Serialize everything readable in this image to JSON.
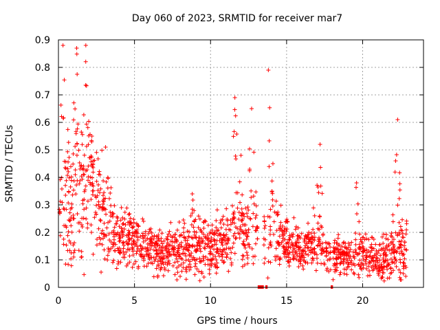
{
  "chart_data": {
    "type": "scatter",
    "title": "Day 060 of 2023, SRMTID for receiver mar7",
    "xlabel": "GPS time / hours",
    "ylabel": "SRMTID / TECUs",
    "xlim": [
      0,
      24
    ],
    "ylim": [
      0,
      0.9
    ],
    "xticks": [
      0,
      5,
      10,
      15,
      20
    ],
    "yticks": [
      0,
      0.1,
      0.2,
      0.3,
      0.4,
      0.5,
      0.6,
      0.7,
      0.8,
      0.9
    ],
    "grid": true,
    "marker": "+",
    "color": "#ff0000",
    "series_name": "SRMTID",
    "envelope": [
      {
        "t": 0.0,
        "base": 0.27,
        "spread": 0.14
      },
      {
        "t": 0.5,
        "base": 0.28,
        "spread": 0.2
      },
      {
        "t": 1.0,
        "base": 0.35,
        "spread": 0.22
      },
      {
        "t": 1.5,
        "base": 0.38,
        "spread": 0.22
      },
      {
        "t": 2.0,
        "base": 0.36,
        "spread": 0.2
      },
      {
        "t": 2.5,
        "base": 0.32,
        "spread": 0.16
      },
      {
        "t": 3.0,
        "base": 0.28,
        "spread": 0.14
      },
      {
        "t": 3.5,
        "base": 0.22,
        "spread": 0.1
      },
      {
        "t": 4.0,
        "base": 0.2,
        "spread": 0.09
      },
      {
        "t": 5.0,
        "base": 0.17,
        "spread": 0.07
      },
      {
        "t": 6.0,
        "base": 0.14,
        "spread": 0.06
      },
      {
        "t": 7.0,
        "base": 0.12,
        "spread": 0.06
      },
      {
        "t": 8.0,
        "base": 0.14,
        "spread": 0.07
      },
      {
        "t": 9.0,
        "base": 0.15,
        "spread": 0.08
      },
      {
        "t": 10.0,
        "base": 0.14,
        "spread": 0.08
      },
      {
        "t": 11.0,
        "base": 0.17,
        "spread": 0.09
      },
      {
        "t": 12.0,
        "base": 0.2,
        "spread": 0.1
      },
      {
        "t": 13.0,
        "base": 0.2,
        "spread": 0.1
      },
      {
        "t": 14.0,
        "base": 0.2,
        "spread": 0.1
      },
      {
        "t": 15.0,
        "base": 0.16,
        "spread": 0.07
      },
      {
        "t": 16.0,
        "base": 0.14,
        "spread": 0.07
      },
      {
        "t": 17.0,
        "base": 0.16,
        "spread": 0.08
      },
      {
        "t": 18.0,
        "base": 0.11,
        "spread": 0.05
      },
      {
        "t": 19.0,
        "base": 0.12,
        "spread": 0.05
      },
      {
        "t": 20.0,
        "base": 0.12,
        "spread": 0.06
      },
      {
        "t": 21.0,
        "base": 0.09,
        "spread": 0.05
      },
      {
        "t": 22.0,
        "base": 0.14,
        "spread": 0.08
      },
      {
        "t": 22.9,
        "base": 0.15,
        "spread": 0.08
      }
    ],
    "spikes": [
      {
        "t": 0.3,
        "peak": 0.88
      },
      {
        "t": 1.2,
        "peak": 0.87
      },
      {
        "t": 1.8,
        "peak": 0.88
      },
      {
        "t": 2.2,
        "peak": 0.55
      },
      {
        "t": 3.1,
        "peak": 0.51
      },
      {
        "t": 8.8,
        "peak": 0.34
      },
      {
        "t": 11.6,
        "peak": 0.69
      },
      {
        "t": 12.0,
        "peak": 0.48
      },
      {
        "t": 12.7,
        "peak": 0.65
      },
      {
        "t": 13.8,
        "peak": 0.79
      },
      {
        "t": 14.1,
        "peak": 0.45
      },
      {
        "t": 17.2,
        "peak": 0.52
      },
      {
        "t": 19.6,
        "peak": 0.38
      },
      {
        "t": 22.3,
        "peak": 0.61
      }
    ],
    "gaps": [
      {
        "start": 13.1,
        "end": 13.5
      },
      {
        "start": 13.6,
        "end": 13.75
      },
      {
        "start": 17.9,
        "end": 18.05
      }
    ],
    "n_points": 1800
  }
}
